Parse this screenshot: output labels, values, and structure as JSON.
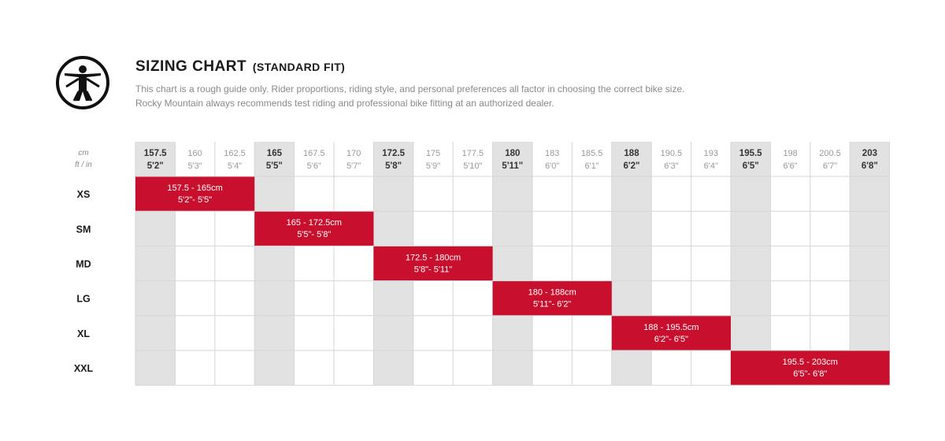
{
  "header": {
    "title": "SIZING CHART",
    "title_suffix": "(STANDARD FIT)",
    "description_line1": "This chart is a rough guide only. Rider proportions, riding style, and personal preferences all factor in choosing the correct bike size.",
    "description_line2": "Rocky Mountain always recommends test riding and professional bike fitting at an authorized dealer.",
    "logo_icon": "vitruvian-man-icon"
  },
  "units": {
    "cm": "cm",
    "ft": "ft / in"
  },
  "colors": {
    "bar": "#c8102e",
    "highlight": "#e2e2e2",
    "grid": "#d6d6d6"
  },
  "chart_data": {
    "type": "table",
    "columns": [
      {
        "cm": "157.5",
        "ft": "5'2\"",
        "bold": true
      },
      {
        "cm": "160",
        "ft": "5'3\"",
        "bold": false
      },
      {
        "cm": "162.5",
        "ft": "5'4\"",
        "bold": false
      },
      {
        "cm": "165",
        "ft": "5'5\"",
        "bold": true
      },
      {
        "cm": "167.5",
        "ft": "5'6\"",
        "bold": false
      },
      {
        "cm": "170",
        "ft": "5'7\"",
        "bold": false
      },
      {
        "cm": "172.5",
        "ft": "5'8\"",
        "bold": true
      },
      {
        "cm": "175",
        "ft": "5'9\"",
        "bold": false
      },
      {
        "cm": "177.5",
        "ft": "5'10\"",
        "bold": false
      },
      {
        "cm": "180",
        "ft": "5'11\"",
        "bold": true
      },
      {
        "cm": "183",
        "ft": "6'0\"",
        "bold": false
      },
      {
        "cm": "185.5",
        "ft": "6'1\"",
        "bold": false
      },
      {
        "cm": "188",
        "ft": "6'2\"",
        "bold": true
      },
      {
        "cm": "190.5",
        "ft": "6'3\"",
        "bold": false
      },
      {
        "cm": "193",
        "ft": "6'4\"",
        "bold": false
      },
      {
        "cm": "195.5",
        "ft": "6'5\"",
        "bold": true
      },
      {
        "cm": "198",
        "ft": "6'6\"",
        "bold": false
      },
      {
        "cm": "200.5",
        "ft": "6'7\"",
        "bold": false
      },
      {
        "cm": "203",
        "ft": "6'8\"",
        "bold": true
      }
    ],
    "sizes": [
      {
        "size": "XS",
        "start": 157.5,
        "end": 165,
        "label_cm": "157.5 - 165cm",
        "label_ft": "5'2\"- 5'5\""
      },
      {
        "size": "SM",
        "start": 165,
        "end": 172.5,
        "label_cm": "165 - 172.5cm",
        "label_ft": "5'5\"- 5'8\""
      },
      {
        "size": "MD",
        "start": 172.5,
        "end": 180,
        "label_cm": "172.5 - 180cm",
        "label_ft": "5'8\"- 5'11\""
      },
      {
        "size": "LG",
        "start": 180,
        "end": 188,
        "label_cm": "180 - 188cm",
        "label_ft": "5'11\"- 6'2\""
      },
      {
        "size": "XL",
        "start": 188,
        "end": 195.5,
        "label_cm": "188 - 195.5cm",
        "label_ft": "6'2\"- 6'5\""
      },
      {
        "size": "XXL",
        "start": 195.5,
        "end": 203,
        "label_cm": "195.5 - 203cm",
        "label_ft": "6'5\"- 6'8\""
      }
    ]
  }
}
